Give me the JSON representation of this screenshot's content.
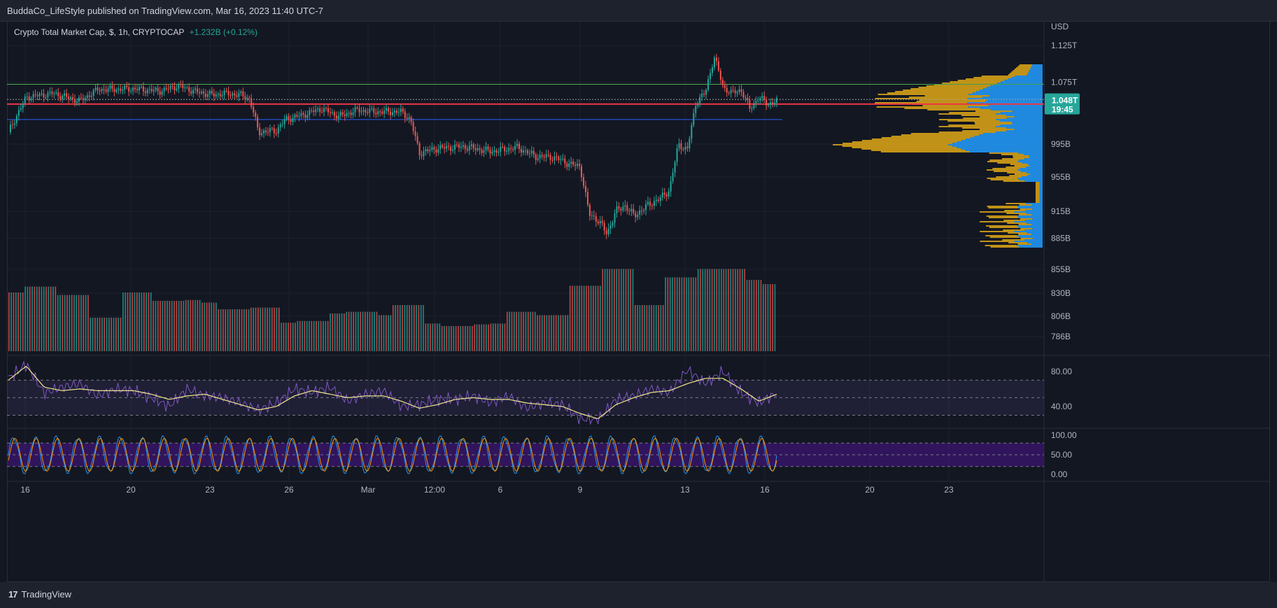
{
  "header": {
    "published": "BuddaCo_LifeStyle published on TradingView.com, Mar 16, 2023 11:40 UTC-7"
  },
  "legend": {
    "symbol": "Crypto Total Market Cap, $, 1h, CRYPTOCAP",
    "change": "+1.232B (+0.12%)"
  },
  "footer": {
    "brand": "TradingView"
  },
  "colors": {
    "up": "#26a69a",
    "down": "#ef5350",
    "rsi": "#7e57c2",
    "rsi_ma": "#f0e68c",
    "stoch_k": "#2196f3",
    "stoch_d": "#ff9800",
    "vp_up": "#2196f3",
    "vp_down": "#d4a017",
    "resistance": "#4caf50",
    "support_red": "#f23645",
    "support_blue": "#2962ff"
  },
  "chart_data": [
    {
      "type": "candlestick",
      "title": "Crypto Total Market Cap, $, 1h, CRYPTOCAP",
      "ylabel": "USD",
      "y_ticks": [
        "1.125T",
        "1.075T",
        "995B",
        "955B",
        "915B",
        "885B"
      ],
      "ylim": [
        870,
        1140
      ],
      "scale": "log",
      "x_ticks": [
        "16",
        "20",
        "23",
        "26",
        "Mar",
        "12:00",
        "6",
        "9",
        "13",
        "16",
        "20",
        "23"
      ],
      "last_price": "1.048T",
      "countdown": "19:45",
      "horizontal_lines": [
        {
          "name": "resistance",
          "value": 1072
        },
        {
          "name": "mid-dotted",
          "value": 1052
        },
        {
          "name": "red-level",
          "value": 1046
        },
        {
          "name": "support",
          "value": 1026
        }
      ],
      "close_path": [
        [
          0,
          1010
        ],
        [
          2,
          1055
        ],
        [
          5,
          1060
        ],
        [
          8,
          1050
        ],
        [
          10,
          1065
        ],
        [
          14,
          1066
        ],
        [
          17,
          1063
        ],
        [
          19,
          1070
        ],
        [
          21,
          1062
        ],
        [
          23,
          1058
        ],
        [
          24,
          1060
        ],
        [
          26,
          1058
        ],
        [
          27,
          1053
        ],
        [
          28,
          1010
        ],
        [
          30,
          1012
        ],
        [
          31,
          1026
        ],
        [
          33,
          1032
        ],
        [
          35,
          1040
        ],
        [
          37,
          1030
        ],
        [
          39,
          1038
        ],
        [
          41,
          1036
        ],
        [
          44,
          1036
        ],
        [
          45,
          1026
        ],
        [
          46,
          984
        ],
        [
          48,
          990
        ],
        [
          51,
          992
        ],
        [
          54,
          986
        ],
        [
          57,
          991
        ],
        [
          59,
          980
        ],
        [
          61,
          979
        ],
        [
          63,
          970
        ],
        [
          64,
          968
        ],
        [
          65,
          912
        ],
        [
          66,
          905
        ],
        [
          67,
          890
        ],
        [
          68,
          915
        ],
        [
          69,
          922
        ],
        [
          70,
          910
        ],
        [
          72,
          925
        ],
        [
          73,
          930
        ],
        [
          74,
          940
        ],
        [
          75,
          995
        ],
        [
          76,
          988
        ],
        [
          77,
          1050
        ],
        [
          78,
          1060
        ],
        [
          79,
          1110
        ],
        [
          80,
          1068
        ],
        [
          81,
          1060
        ],
        [
          82,
          1065
        ],
        [
          83,
          1040
        ],
        [
          84,
          1055
        ],
        [
          85,
          1046
        ],
        [
          86,
          1050
        ]
      ],
      "x_span": 86
    },
    {
      "type": "bar",
      "name": "volume",
      "y_ticks": [
        "855B",
        "830B",
        "806B",
        "786B"
      ],
      "block_levels": [
        0.7,
        0.77,
        0.77,
        0.67,
        0.67,
        0.4,
        0.4,
        0.7,
        0.7,
        0.6,
        0.6,
        0.61,
        0.58,
        0.5,
        0.5,
        0.52,
        0.52,
        0.34,
        0.36,
        0.36,
        0.45,
        0.47,
        0.47,
        0.43,
        0.55,
        0.55,
        0.33,
        0.3,
        0.3,
        0.32,
        0.33,
        0.47,
        0.47,
        0.43,
        0.43,
        0.78,
        0.78,
        0.98,
        0.98,
        0.55,
        0.55,
        0.88,
        0.88,
        0.98,
        0.98,
        0.98,
        0.85,
        0.8
      ]
    },
    {
      "type": "line",
      "name": "RSI",
      "y_ticks": [
        "80.00",
        "40.00"
      ],
      "ylim": [
        20,
        95
      ],
      "bands": [
        70,
        50,
        30
      ],
      "rsi_path": [
        [
          0,
          72
        ],
        [
          2,
          88
        ],
        [
          4,
          55
        ],
        [
          6,
          62
        ],
        [
          8,
          66
        ],
        [
          10,
          52
        ],
        [
          12,
          60
        ],
        [
          14,
          58
        ],
        [
          16,
          50
        ],
        [
          18,
          40
        ],
        [
          20,
          60
        ],
        [
          22,
          52
        ],
        [
          24,
          50
        ],
        [
          26,
          44
        ],
        [
          28,
          36
        ],
        [
          30,
          44
        ],
        [
          32,
          60
        ],
        [
          34,
          56
        ],
        [
          36,
          62
        ],
        [
          38,
          46
        ],
        [
          40,
          54
        ],
        [
          42,
          58
        ],
        [
          44,
          40
        ],
        [
          46,
          42
        ],
        [
          48,
          48
        ],
        [
          50,
          48
        ],
        [
          52,
          52
        ],
        [
          54,
          44
        ],
        [
          56,
          52
        ],
        [
          58,
          38
        ],
        [
          60,
          44
        ],
        [
          62,
          42
        ],
        [
          64,
          26
        ],
        [
          66,
          24
        ],
        [
          68,
          48
        ],
        [
          70,
          52
        ],
        [
          72,
          60
        ],
        [
          74,
          56
        ],
        [
          76,
          82
        ],
        [
          78,
          66
        ],
        [
          80,
          80
        ],
        [
          82,
          56
        ],
        [
          84,
          44
        ],
        [
          86,
          55
        ]
      ],
      "ma_path": [
        [
          0,
          70
        ],
        [
          2,
          86
        ],
        [
          4,
          62
        ],
        [
          6,
          58
        ],
        [
          8,
          60
        ],
        [
          10,
          58
        ],
        [
          12,
          58
        ],
        [
          14,
          58
        ],
        [
          16,
          54
        ],
        [
          18,
          48
        ],
        [
          20,
          52
        ],
        [
          22,
          54
        ],
        [
          24,
          48
        ],
        [
          26,
          42
        ],
        [
          28,
          36
        ],
        [
          30,
          40
        ],
        [
          32,
          52
        ],
        [
          34,
          58
        ],
        [
          36,
          54
        ],
        [
          38,
          50
        ],
        [
          40,
          52
        ],
        [
          42,
          52
        ],
        [
          44,
          46
        ],
        [
          46,
          38
        ],
        [
          48,
          42
        ],
        [
          50,
          48
        ],
        [
          52,
          50
        ],
        [
          54,
          48
        ],
        [
          56,
          48
        ],
        [
          58,
          44
        ],
        [
          60,
          42
        ],
        [
          62,
          40
        ],
        [
          64,
          32
        ],
        [
          66,
          26
        ],
        [
          68,
          42
        ],
        [
          70,
          50
        ],
        [
          72,
          56
        ],
        [
          74,
          58
        ],
        [
          76,
          66
        ],
        [
          78,
          72
        ],
        [
          80,
          72
        ],
        [
          82,
          60
        ],
        [
          84,
          46
        ],
        [
          86,
          54
        ]
      ]
    },
    {
      "type": "line",
      "name": "Stochastic",
      "y_ticks": [
        "100.00",
        "50.00",
        "0.00"
      ],
      "ylim": [
        0,
        100
      ],
      "band": [
        20,
        80
      ],
      "cycles": 36,
      "last": 73
    }
  ]
}
